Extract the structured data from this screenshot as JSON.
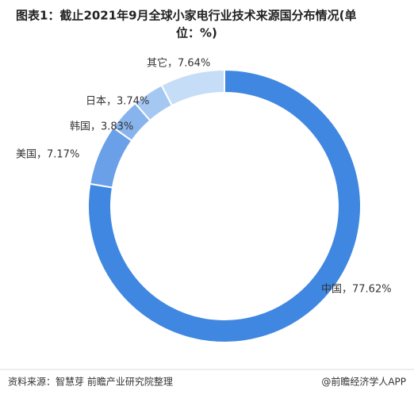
{
  "chart_data": {
    "type": "donut",
    "title_lines": [
      "图表1：截止2021年9月全球小家电行业技术来源国分布情况(单",
      "位：%)"
    ],
    "values": [
      77.62,
      7.17,
      3.83,
      3.74,
      7.64
    ],
    "value_labels": [
      "中国，77.62%",
      "美国，7.17%",
      "韩国，3.83%",
      "日本，3.74%",
      "其它，7.64%"
    ],
    "colors": [
      "#4087e1",
      "#6aa0e7",
      "#88b4ed",
      "#a5c8f3",
      "#c6ddf8"
    ],
    "source": "资料来源：智慧芽 前瞻产业研究院整理",
    "credit": "@前瞻经济学人APP"
  }
}
